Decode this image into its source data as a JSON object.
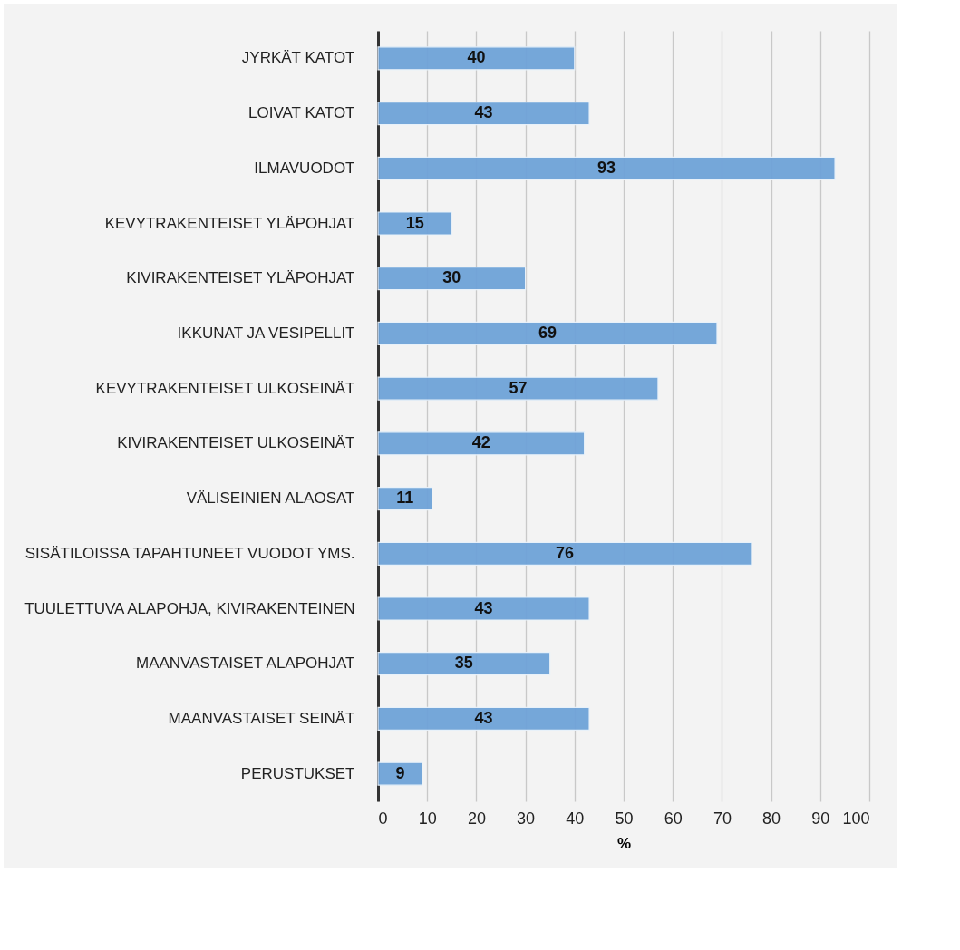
{
  "chart_data": {
    "type": "bar",
    "orientation": "horizontal",
    "categories": [
      "JYRKÄT KATOT",
      "LOIVAT KATOT",
      "ILMAVUODOT",
      "KEVYTRAKENTEISET YLÄPOHJAT",
      "KIVIRAKENTEISET YLÄPOHJAT",
      "IKKUNAT JA VESIPELLIT",
      "KEVYTRAKENTEISET ULKOSEINÄT",
      "KIVIRAKENTEISET ULKOSEINÄT",
      "VÄLISEINIEN ALAOSAT",
      "SISÄTILOISSA TAPAHTUNEET VUODOT YMS.",
      "TUULETTUVA ALAPOHJA, KIVIRAKENTEINEN",
      "MAANVASTAISET ALAPOHJAT",
      "MAANVASTAISET SEINÄT",
      "PERUSTUKSET"
    ],
    "values": [
      40,
      43,
      93,
      15,
      30,
      69,
      57,
      42,
      11,
      76,
      43,
      35,
      43,
      9
    ],
    "color": "#6fa3d8",
    "xlabel": "%",
    "xlim": [
      0,
      100
    ],
    "xticks": [
      0,
      10,
      20,
      30,
      40,
      50,
      60,
      70,
      80,
      90,
      100
    ],
    "grid": "x",
    "data_labels": true
  }
}
